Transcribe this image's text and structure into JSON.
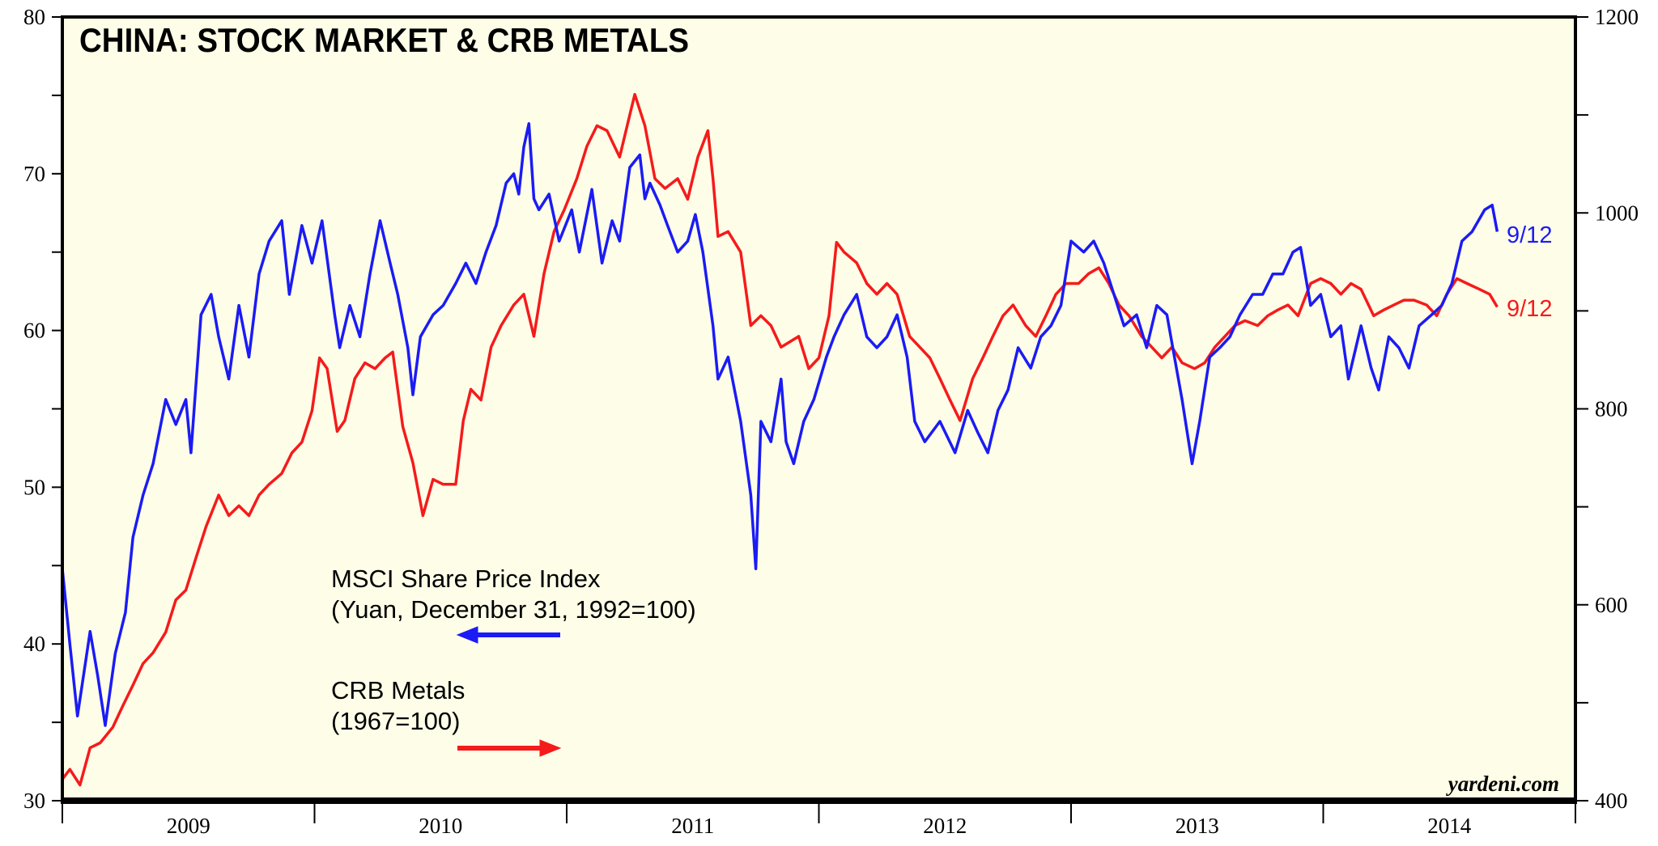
{
  "chart_data": {
    "type": "line",
    "title": "CHINA: STOCK MARKET & CRB METALS",
    "source": "yardeni.com",
    "x_range": [
      2009,
      2015
    ],
    "x_tick_labels": [
      "2009",
      "2010",
      "2011",
      "2012",
      "2013",
      "2014"
    ],
    "left_axis": {
      "ylim": [
        30,
        80
      ],
      "tick_labels": [
        "30",
        "40",
        "50",
        "60",
        "70",
        "80"
      ],
      "minor_step": 5
    },
    "right_axis": {
      "ylim": [
        400,
        1200
      ],
      "tick_labels": [
        "400",
        "600",
        "800",
        "1000",
        "1200"
      ],
      "minor_step": 100
    },
    "grid": false,
    "colors": {
      "background": "#fefee8",
      "msci": "#1b1bf5",
      "crb": "#f51b1b"
    },
    "legend": {
      "msci_line1": "MSCI Share Price Index",
      "msci_line2": "(Yuan, December 31, 1992=100)",
      "msci_arrow": "left",
      "crb_line1": "CRB Metals",
      "crb_line2": "(1967=100)",
      "crb_arrow": "right"
    },
    "series": [
      {
        "name": "MSCI Share Price Index",
        "axis": "left",
        "end_label": "9/12",
        "points": [
          [
            2009.0,
            44.8
          ],
          [
            2009.03,
            40
          ],
          [
            2009.06,
            35.4
          ],
          [
            2009.11,
            40.8
          ],
          [
            2009.14,
            38
          ],
          [
            2009.17,
            34.8
          ],
          [
            2009.21,
            39.4
          ],
          [
            2009.25,
            42
          ],
          [
            2009.28,
            46.8
          ],
          [
            2009.32,
            49.5
          ],
          [
            2009.36,
            51.5
          ],
          [
            2009.41,
            55.6
          ],
          [
            2009.45,
            54
          ],
          [
            2009.49,
            55.6
          ],
          [
            2009.51,
            52.2
          ],
          [
            2009.55,
            61
          ],
          [
            2009.59,
            62.3
          ],
          [
            2009.62,
            59.6
          ],
          [
            2009.66,
            56.9
          ],
          [
            2009.7,
            61.6
          ],
          [
            2009.74,
            58.3
          ],
          [
            2009.78,
            63.6
          ],
          [
            2009.82,
            65.7
          ],
          [
            2009.87,
            67
          ],
          [
            2009.9,
            62.3
          ],
          [
            2009.95,
            66.7
          ],
          [
            2009.99,
            64.3
          ],
          [
            2010.03,
            67
          ],
          [
            2010.08,
            61
          ],
          [
            2010.1,
            58.9
          ],
          [
            2010.14,
            61.6
          ],
          [
            2010.18,
            59.6
          ],
          [
            2010.22,
            63.6
          ],
          [
            2010.26,
            67
          ],
          [
            2010.3,
            64.3
          ],
          [
            2010.33,
            62.3
          ],
          [
            2010.37,
            58.9
          ],
          [
            2010.39,
            55.9
          ],
          [
            2010.42,
            59.6
          ],
          [
            2010.47,
            61
          ],
          [
            2010.51,
            61.6
          ],
          [
            2010.56,
            63
          ],
          [
            2010.6,
            64.3
          ],
          [
            2010.64,
            63
          ],
          [
            2010.68,
            65
          ],
          [
            2010.72,
            66.7
          ],
          [
            2010.76,
            69.4
          ],
          [
            2010.79,
            70
          ],
          [
            2010.81,
            68.7
          ],
          [
            2010.83,
            71.7
          ],
          [
            2010.85,
            73.2
          ],
          [
            2010.87,
            68.4
          ],
          [
            2010.89,
            67.7
          ],
          [
            2010.93,
            68.7
          ],
          [
            2010.97,
            65.7
          ],
          [
            2011.02,
            67.7
          ],
          [
            2011.05,
            65
          ],
          [
            2011.1,
            69
          ],
          [
            2011.14,
            64.3
          ],
          [
            2011.18,
            67
          ],
          [
            2011.21,
            65.7
          ],
          [
            2011.25,
            70.4
          ],
          [
            2011.29,
            71.2
          ],
          [
            2011.31,
            68.4
          ],
          [
            2011.33,
            69.4
          ],
          [
            2011.37,
            68
          ],
          [
            2011.4,
            66.7
          ],
          [
            2011.44,
            65
          ],
          [
            2011.48,
            65.7
          ],
          [
            2011.51,
            67.4
          ],
          [
            2011.54,
            65
          ],
          [
            2011.58,
            60.3
          ],
          [
            2011.6,
            56.9
          ],
          [
            2011.64,
            58.3
          ],
          [
            2011.69,
            54.2
          ],
          [
            2011.73,
            49.5
          ],
          [
            2011.75,
            44.8
          ],
          [
            2011.77,
            54.2
          ],
          [
            2011.81,
            52.9
          ],
          [
            2011.85,
            56.9
          ],
          [
            2011.87,
            52.9
          ],
          [
            2011.9,
            51.5
          ],
          [
            2011.94,
            54.2
          ],
          [
            2011.98,
            55.6
          ],
          [
            2012.03,
            58.3
          ],
          [
            2012.06,
            59.6
          ],
          [
            2012.1,
            61
          ],
          [
            2012.15,
            62.3
          ],
          [
            2012.19,
            59.6
          ],
          [
            2012.23,
            58.9
          ],
          [
            2012.27,
            59.6
          ],
          [
            2012.31,
            61
          ],
          [
            2012.35,
            58.3
          ],
          [
            2012.38,
            54.2
          ],
          [
            2012.42,
            52.9
          ],
          [
            2012.48,
            54.2
          ],
          [
            2012.54,
            52.2
          ],
          [
            2012.59,
            54.9
          ],
          [
            2012.63,
            53.5
          ],
          [
            2012.67,
            52.2
          ],
          [
            2012.71,
            54.9
          ],
          [
            2012.75,
            56.2
          ],
          [
            2012.79,
            58.9
          ],
          [
            2012.84,
            57.6
          ],
          [
            2012.88,
            59.6
          ],
          [
            2012.92,
            60.3
          ],
          [
            2012.96,
            61.6
          ],
          [
            2013.0,
            65.7
          ],
          [
            2013.05,
            65
          ],
          [
            2013.09,
            65.7
          ],
          [
            2013.13,
            64.3
          ],
          [
            2013.17,
            62.3
          ],
          [
            2013.21,
            60.3
          ],
          [
            2013.26,
            61
          ],
          [
            2013.3,
            58.9
          ],
          [
            2013.34,
            61.6
          ],
          [
            2013.38,
            61
          ],
          [
            2013.41,
            58.3
          ],
          [
            2013.44,
            55.6
          ],
          [
            2013.48,
            51.5
          ],
          [
            2013.51,
            54.2
          ],
          [
            2013.55,
            58.3
          ],
          [
            2013.59,
            58.9
          ],
          [
            2013.63,
            59.6
          ],
          [
            2013.67,
            61
          ],
          [
            2013.72,
            62.3
          ],
          [
            2013.76,
            62.3
          ],
          [
            2013.8,
            63.6
          ],
          [
            2013.84,
            63.6
          ],
          [
            2013.88,
            65
          ],
          [
            2013.91,
            65.3
          ],
          [
            2013.95,
            61.6
          ],
          [
            2013.99,
            62.3
          ],
          [
            2014.03,
            59.6
          ],
          [
            2014.07,
            60.3
          ],
          [
            2014.1,
            56.9
          ],
          [
            2014.15,
            60.3
          ],
          [
            2014.19,
            57.6
          ],
          [
            2014.22,
            56.2
          ],
          [
            2014.26,
            59.6
          ],
          [
            2014.3,
            58.9
          ],
          [
            2014.34,
            57.6
          ],
          [
            2014.38,
            60.3
          ],
          [
            2014.43,
            61
          ],
          [
            2014.47,
            61.6
          ],
          [
            2014.51,
            63
          ],
          [
            2014.55,
            65.7
          ],
          [
            2014.59,
            66.3
          ],
          [
            2014.64,
            67.7
          ],
          [
            2014.67,
            68
          ],
          [
            2014.69,
            66.3
          ]
        ]
      },
      {
        "name": "CRB Metals",
        "axis": "right",
        "end_label": "9/12",
        "points": [
          [
            2009.0,
            422
          ],
          [
            2009.03,
            432
          ],
          [
            2009.07,
            416
          ],
          [
            2009.11,
            454
          ],
          [
            2009.15,
            459
          ],
          [
            2009.2,
            475
          ],
          [
            2009.24,
            497
          ],
          [
            2009.28,
            518
          ],
          [
            2009.32,
            540
          ],
          [
            2009.36,
            551
          ],
          [
            2009.41,
            572
          ],
          [
            2009.45,
            605
          ],
          [
            2009.49,
            615
          ],
          [
            2009.53,
            648
          ],
          [
            2009.57,
            680
          ],
          [
            2009.62,
            712
          ],
          [
            2009.66,
            691
          ],
          [
            2009.7,
            701
          ],
          [
            2009.74,
            691
          ],
          [
            2009.78,
            712
          ],
          [
            2009.82,
            723
          ],
          [
            2009.87,
            734
          ],
          [
            2009.91,
            755
          ],
          [
            2009.95,
            766
          ],
          [
            2009.99,
            798
          ],
          [
            2010.02,
            852
          ],
          [
            2010.05,
            841
          ],
          [
            2010.09,
            777
          ],
          [
            2010.12,
            788
          ],
          [
            2010.16,
            831
          ],
          [
            2010.2,
            847
          ],
          [
            2010.24,
            841
          ],
          [
            2010.28,
            852
          ],
          [
            2010.31,
            858
          ],
          [
            2010.35,
            782
          ],
          [
            2010.39,
            745
          ],
          [
            2010.43,
            691
          ],
          [
            2010.47,
            728
          ],
          [
            2010.51,
            723
          ],
          [
            2010.56,
            723
          ],
          [
            2010.59,
            788
          ],
          [
            2010.62,
            820
          ],
          [
            2010.66,
            809
          ],
          [
            2010.7,
            863
          ],
          [
            2010.74,
            885
          ],
          [
            2010.79,
            906
          ],
          [
            2010.83,
            917
          ],
          [
            2010.87,
            874
          ],
          [
            2010.91,
            938
          ],
          [
            2010.95,
            981
          ],
          [
            2010.99,
            1003
          ],
          [
            2011.04,
            1035
          ],
          [
            2011.08,
            1068
          ],
          [
            2011.12,
            1089
          ],
          [
            2011.16,
            1084
          ],
          [
            2011.21,
            1057
          ],
          [
            2011.25,
            1100
          ],
          [
            2011.27,
            1121
          ],
          [
            2011.31,
            1089
          ],
          [
            2011.35,
            1035
          ],
          [
            2011.39,
            1025
          ],
          [
            2011.44,
            1035
          ],
          [
            2011.48,
            1014
          ],
          [
            2011.52,
            1057
          ],
          [
            2011.56,
            1084
          ],
          [
            2011.58,
            1035
          ],
          [
            2011.6,
            976
          ],
          [
            2011.64,
            981
          ],
          [
            2011.69,
            960
          ],
          [
            2011.73,
            885
          ],
          [
            2011.77,
            895
          ],
          [
            2011.81,
            885
          ],
          [
            2011.85,
            863
          ],
          [
            2011.92,
            874
          ],
          [
            2011.96,
            841
          ],
          [
            2012.0,
            852
          ],
          [
            2012.04,
            895
          ],
          [
            2012.07,
            970
          ],
          [
            2012.1,
            960
          ],
          [
            2012.15,
            949
          ],
          [
            2012.19,
            928
          ],
          [
            2012.23,
            917
          ],
          [
            2012.27,
            928
          ],
          [
            2012.31,
            917
          ],
          [
            2012.36,
            874
          ],
          [
            2012.4,
            863
          ],
          [
            2012.44,
            852
          ],
          [
            2012.48,
            831
          ],
          [
            2012.52,
            809
          ],
          [
            2012.56,
            788
          ],
          [
            2012.61,
            831
          ],
          [
            2012.65,
            852
          ],
          [
            2012.69,
            874
          ],
          [
            2012.73,
            895
          ],
          [
            2012.77,
            906
          ],
          [
            2012.82,
            885
          ],
          [
            2012.86,
            874
          ],
          [
            2012.9,
            895
          ],
          [
            2012.94,
            917
          ],
          [
            2012.98,
            928
          ],
          [
            2013.03,
            928
          ],
          [
            2013.07,
            938
          ],
          [
            2013.11,
            944
          ],
          [
            2013.15,
            928
          ],
          [
            2013.19,
            906
          ],
          [
            2013.23,
            895
          ],
          [
            2013.28,
            874
          ],
          [
            2013.32,
            863
          ],
          [
            2013.36,
            852
          ],
          [
            2013.4,
            863
          ],
          [
            2013.44,
            847
          ],
          [
            2013.49,
            841
          ],
          [
            2013.53,
            847
          ],
          [
            2013.57,
            863
          ],
          [
            2013.61,
            874
          ],
          [
            2013.65,
            885
          ],
          [
            2013.69,
            890
          ],
          [
            2013.74,
            885
          ],
          [
            2013.78,
            895
          ],
          [
            2013.82,
            901
          ],
          [
            2013.86,
            906
          ],
          [
            2013.9,
            895
          ],
          [
            2013.95,
            928
          ],
          [
            2013.99,
            933
          ],
          [
            2014.03,
            928
          ],
          [
            2014.07,
            917
          ],
          [
            2014.11,
            928
          ],
          [
            2014.15,
            922
          ],
          [
            2014.2,
            895
          ],
          [
            2014.24,
            901
          ],
          [
            2014.28,
            906
          ],
          [
            2014.32,
            911
          ],
          [
            2014.36,
            911
          ],
          [
            2014.41,
            906
          ],
          [
            2014.45,
            895
          ],
          [
            2014.49,
            917
          ],
          [
            2014.53,
            933
          ],
          [
            2014.57,
            928
          ],
          [
            2014.62,
            922
          ],
          [
            2014.66,
            917
          ],
          [
            2014.69,
            904
          ]
        ]
      }
    ]
  }
}
